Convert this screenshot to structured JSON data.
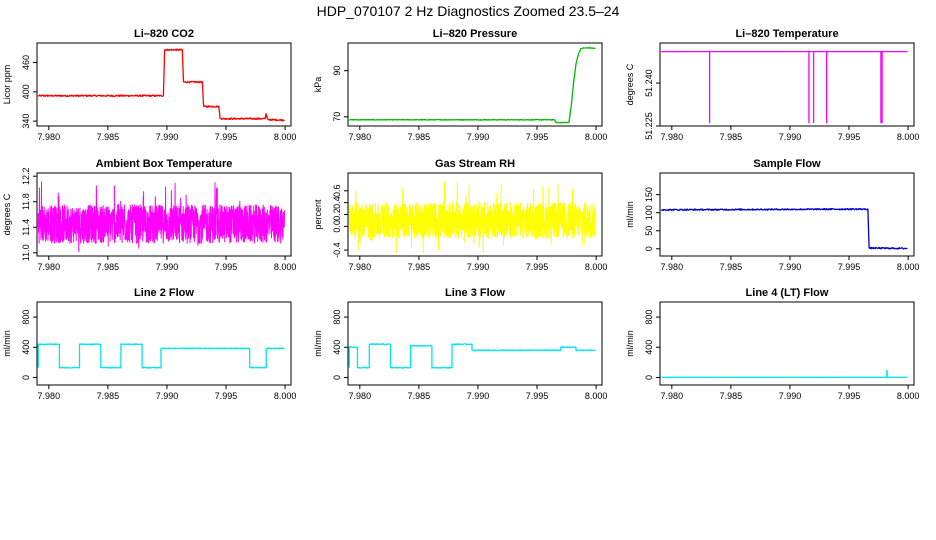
{
  "figure_title": "HDP_070107  2 Hz Diagnostics Zoomed 23.5–24",
  "chart_data": [
    {
      "type": "line",
      "title": "Li–820 CO2",
      "xlabel": "",
      "ylabel": "Licor ppm",
      "xlim": [
        7.979,
        8.0005
      ],
      "ylim": [
        330,
        500
      ],
      "xticks": [
        7.98,
        7.985,
        7.99,
        7.995,
        8.0
      ],
      "xtick_labels": [
        "7.980",
        "7.985",
        "7.990",
        "7.995",
        "8.000"
      ],
      "yticks": [
        340,
        400,
        460
      ],
      "ytick_labels": [
        "340",
        "400",
        "460"
      ],
      "series": [
        {
          "color": "#ff0000",
          "noise": 1.5,
          "x": [
            7.9791,
            7.9897,
            7.9898,
            7.9913,
            7.9914,
            7.993,
            7.9931,
            7.9944,
            7.9945,
            7.9983,
            7.9984,
            7.9985,
            7.9986,
            7.99995
          ],
          "y": [
            392,
            392,
            486,
            486,
            420,
            420,
            370,
            370,
            345,
            345,
            355,
            345,
            343,
            342
          ]
        }
      ]
    },
    {
      "type": "line",
      "title": "Li–820 Pressure",
      "xlabel": "",
      "ylabel": "kPa",
      "xlim": [
        7.979,
        8.0005
      ],
      "ylim": [
        66,
        102
      ],
      "xticks": [
        7.98,
        7.985,
        7.99,
        7.995,
        8.0
      ],
      "xtick_labels": [
        "7.980",
        "7.985",
        "7.990",
        "7.995",
        "8.000"
      ],
      "yticks": [
        70,
        90
      ],
      "ytick_labels": [
        "70",
        "90"
      ],
      "series": [
        {
          "color": "#00bb00",
          "noise": 0.15,
          "x": [
            7.9791,
            7.9965,
            7.9966,
            7.9977,
            7.9979,
            7.9981,
            7.9983,
            7.9985,
            7.9987,
            7.9989,
            7.9995,
            7.99995
          ],
          "y": [
            68.7,
            68.7,
            67.5,
            67.5,
            75,
            85,
            93,
            97,
            99.5,
            99.8,
            99.9,
            99.6
          ]
        }
      ]
    },
    {
      "type": "line",
      "title": "Li–820 Temperature",
      "xlabel": "",
      "ylabel": "degrees C",
      "xlim": [
        7.979,
        8.0005
      ],
      "ylim": [
        51.225,
        51.254
      ],
      "xticks": [
        7.98,
        7.985,
        7.99,
        7.995,
        8.0
      ],
      "xtick_labels": [
        "7.980",
        "7.985",
        "7.990",
        "7.995",
        "8.000"
      ],
      "yticks": [
        51.225,
        51.24
      ],
      "ytick_labels": [
        "51.225",
        "51.240"
      ],
      "series": [
        {
          "color": "#ff00ff",
          "noise": 0,
          "x": [
            7.9791,
            7.9832,
            7.9832,
            7.9832,
            7.9832,
            7.9916,
            7.9916,
            7.9916,
            7.9916,
            7.992,
            7.992,
            7.992,
            7.992,
            7.9931,
            7.9931,
            7.9931,
            7.9931,
            7.9977,
            7.9977,
            7.9978,
            7.9978,
            7.99995
          ],
          "y": [
            51.251,
            51.251,
            51.2262,
            51.2262,
            51.251,
            51.251,
            51.2262,
            51.2262,
            51.251,
            51.251,
            51.2262,
            51.2262,
            51.251,
            51.251,
            51.2262,
            51.2262,
            51.251,
            51.251,
            51.2262,
            51.2262,
            51.251,
            51.251
          ]
        }
      ]
    },
    {
      "type": "line",
      "title": "Ambient Box Temperature",
      "xlabel": "",
      "ylabel": "degrees C",
      "xlim": [
        7.979,
        8.0005
      ],
      "ylim": [
        10.95,
        12.25
      ],
      "xticks": [
        7.98,
        7.985,
        7.99,
        7.995,
        8.0
      ],
      "xtick_labels": [
        "7.980",
        "7.985",
        "7.990",
        "7.995",
        "8.000"
      ],
      "yticks": [
        11.0,
        11.4,
        11.8,
        12.2
      ],
      "ytick_labels": [
        "11.0",
        "11.4",
        "11.8",
        "12.2"
      ],
      "series": [
        {
          "color": "#ff00ff",
          "band": [
            11.15,
            11.75
          ],
          "spike": [
            11.0,
            12.2
          ],
          "x": [
            7.9791,
            7.99995
          ],
          "y": [
            11.45,
            11.45
          ]
        }
      ]
    },
    {
      "type": "line",
      "title": "Gas Stream RH",
      "xlabel": "",
      "ylabel": "percent",
      "xlim": [
        7.979,
        8.0005
      ],
      "ylim": [
        -0.5,
        0.9
      ],
      "xticks": [
        7.98,
        7.985,
        7.99,
        7.995,
        8.0
      ],
      "xtick_labels": [
        "7.980",
        "7.985",
        "7.990",
        "7.995",
        "8.000"
      ],
      "yticks": [
        -0.4,
        0.0,
        0.2,
        0.4,
        0.6
      ],
      "ytick_labels": [
        "-0.4",
        "0.0",
        "0.2",
        "0.4",
        "0.6"
      ],
      "series": [
        {
          "color": "#ffff00",
          "band": [
            -0.2,
            0.4
          ],
          "spike": [
            -0.45,
            0.75
          ],
          "x": [
            7.9791,
            7.99995
          ],
          "y": [
            0.1,
            0.1
          ]
        }
      ]
    },
    {
      "type": "line",
      "title": "Sample Flow",
      "xlabel": "",
      "ylabel": "ml/min",
      "xlim": [
        7.979,
        8.0005
      ],
      "ylim": [
        -20,
        210
      ],
      "xticks": [
        7.98,
        7.985,
        7.99,
        7.995,
        8.0
      ],
      "xtick_labels": [
        "7.980",
        "7.985",
        "7.990",
        "7.995",
        "8.000"
      ],
      "yticks": [
        0,
        50,
        100,
        150
      ],
      "ytick_labels": [
        "0",
        "50",
        "100",
        "150"
      ],
      "series": [
        {
          "color": "#0000cc",
          "noise": 1.8,
          "x": [
            7.9791,
            7.9966,
            7.9967,
            7.99995
          ],
          "y": [
            108,
            110,
            2,
            1
          ]
        }
      ]
    },
    {
      "type": "line",
      "title": "Line 2 Flow",
      "xlabel": "",
      "ylabel": "ml/min",
      "xlim": [
        7.979,
        8.0005
      ],
      "ylim": [
        -100,
        1000
      ],
      "xticks": [
        7.98,
        7.985,
        7.99,
        7.995,
        8.0
      ],
      "xtick_labels": [
        "7.980",
        "7.985",
        "7.990",
        "7.995",
        "8.000"
      ],
      "yticks": [
        0,
        400,
        800
      ],
      "ytick_labels": [
        "0",
        "400",
        "800"
      ],
      "series": [
        {
          "color": "#00e5ee",
          "noise": 6,
          "x": [
            7.9791,
            7.9791,
            7.9809,
            7.9809,
            7.9826,
            7.9826,
            7.9844,
            7.9844,
            7.9861,
            7.9861,
            7.9879,
            7.9879,
            7.9895,
            7.9895,
            7.997,
            7.997,
            7.9984,
            7.9984,
            7.99995
          ],
          "y": [
            130,
            440,
            440,
            130,
            130,
            440,
            440,
            130,
            130,
            440,
            440,
            130,
            130,
            385,
            385,
            130,
            130,
            385,
            385
          ]
        }
      ]
    },
    {
      "type": "line",
      "title": "Line 3 Flow",
      "xlabel": "",
      "ylabel": "ml/min",
      "xlim": [
        7.979,
        8.0005
      ],
      "ylim": [
        -100,
        1000
      ],
      "xticks": [
        7.98,
        7.985,
        7.99,
        7.995,
        8.0
      ],
      "xtick_labels": [
        "7.980",
        "7.985",
        "7.990",
        "7.995",
        "8.000"
      ],
      "yticks": [
        0,
        400,
        800
      ],
      "ytick_labels": [
        "0",
        "400",
        "800"
      ],
      "series": [
        {
          "color": "#00e5ee",
          "noise": 6,
          "x": [
            7.9791,
            7.9791,
            7.9798,
            7.9798,
            7.9808,
            7.9808,
            7.9826,
            7.9826,
            7.9843,
            7.9843,
            7.9861,
            7.9861,
            7.9878,
            7.9878,
            7.9895,
            7.9895,
            7.997,
            7.997,
            7.9983,
            7.9983,
            7.99995
          ],
          "y": [
            130,
            400,
            400,
            130,
            130,
            440,
            440,
            130,
            130,
            420,
            420,
            130,
            130,
            440,
            440,
            360,
            360,
            400,
            400,
            360,
            360
          ]
        }
      ]
    },
    {
      "type": "line",
      "title": "Line 4 (LT) Flow",
      "xlabel": "",
      "ylabel": "ml/min",
      "xlim": [
        7.979,
        8.0005
      ],
      "ylim": [
        -100,
        1000
      ],
      "xticks": [
        7.98,
        7.985,
        7.99,
        7.995,
        8.0
      ],
      "xtick_labels": [
        "7.980",
        "7.985",
        "7.990",
        "7.995",
        "8.000"
      ],
      "yticks": [
        0,
        400,
        800
      ],
      "ytick_labels": [
        "0",
        "400",
        "800"
      ],
      "series": [
        {
          "color": "#00e5ee",
          "noise": 1,
          "x": [
            7.9791,
            7.9982,
            7.9982,
            7.99823,
            7.99823,
            7.99995
          ],
          "y": [
            2,
            2,
            90,
            90,
            2,
            2
          ]
        }
      ]
    }
  ]
}
